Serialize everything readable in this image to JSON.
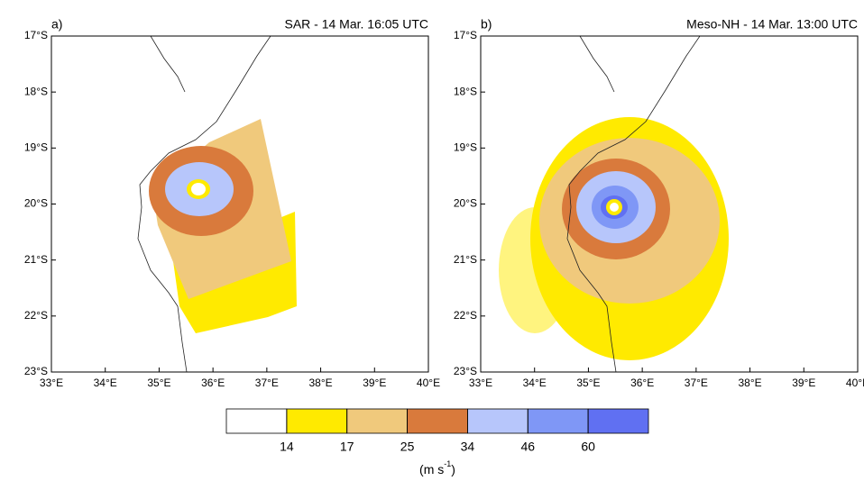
{
  "panels": [
    {
      "label": "a)",
      "title": "SAR - 14 Mar. 16:05 UTC",
      "xlim": [
        33,
        40
      ],
      "ylim": [
        -23,
        -17
      ],
      "xticks": [
        {
          "value": 33,
          "label": "33°E"
        },
        {
          "value": 34,
          "label": "34°E"
        },
        {
          "value": 35,
          "label": "35°E"
        },
        {
          "value": 36,
          "label": "36°E"
        },
        {
          "value": 37,
          "label": "37°E"
        },
        {
          "value": 38,
          "label": "38°E"
        },
        {
          "value": 39,
          "label": "39°E"
        },
        {
          "value": 40,
          "label": "40°E"
        }
      ],
      "yticks": [
        {
          "value": -17,
          "label": "17°S"
        },
        {
          "value": -18,
          "label": "18°S"
        },
        {
          "value": -19,
          "label": "19°S"
        },
        {
          "value": -20,
          "label": "20°S"
        },
        {
          "value": -21,
          "label": "21°S"
        },
        {
          "value": -22,
          "label": "22°S"
        },
        {
          "value": -23,
          "label": "23°S"
        }
      ]
    },
    {
      "label": "b)",
      "title": "Meso-NH - 14 Mar. 13:00 UTC",
      "xlim": [
        33,
        40
      ],
      "ylim": [
        -23,
        -17
      ],
      "xticks": [
        {
          "value": 33,
          "label": "33°E"
        },
        {
          "value": 34,
          "label": "34°E"
        },
        {
          "value": 35,
          "label": "35°E"
        },
        {
          "value": 36,
          "label": "36°E"
        },
        {
          "value": 37,
          "label": "37°E"
        },
        {
          "value": 38,
          "label": "38°E"
        },
        {
          "value": 39,
          "label": "39°E"
        },
        {
          "value": 40,
          "label": "40°E"
        }
      ],
      "yticks": [
        {
          "value": -17,
          "label": "17°S"
        },
        {
          "value": -18,
          "label": "18°S"
        },
        {
          "value": -19,
          "label": "19°S"
        },
        {
          "value": -20,
          "label": "20°S"
        },
        {
          "value": -21,
          "label": "21°S"
        },
        {
          "value": -22,
          "label": "22°S"
        },
        {
          "value": -23,
          "label": "23°S"
        }
      ]
    }
  ],
  "colorbar": {
    "levels": [
      14,
      17,
      25,
      34,
      46,
      60
    ],
    "colors": [
      "#ffffff",
      "#ffea00",
      "#f0c97c",
      "#d97a3c",
      "#b7c6fb",
      "#7f97f6",
      "#6070f2"
    ],
    "units": {
      "open": "(m s",
      "exponent": "-1",
      "close": ")"
    }
  }
}
